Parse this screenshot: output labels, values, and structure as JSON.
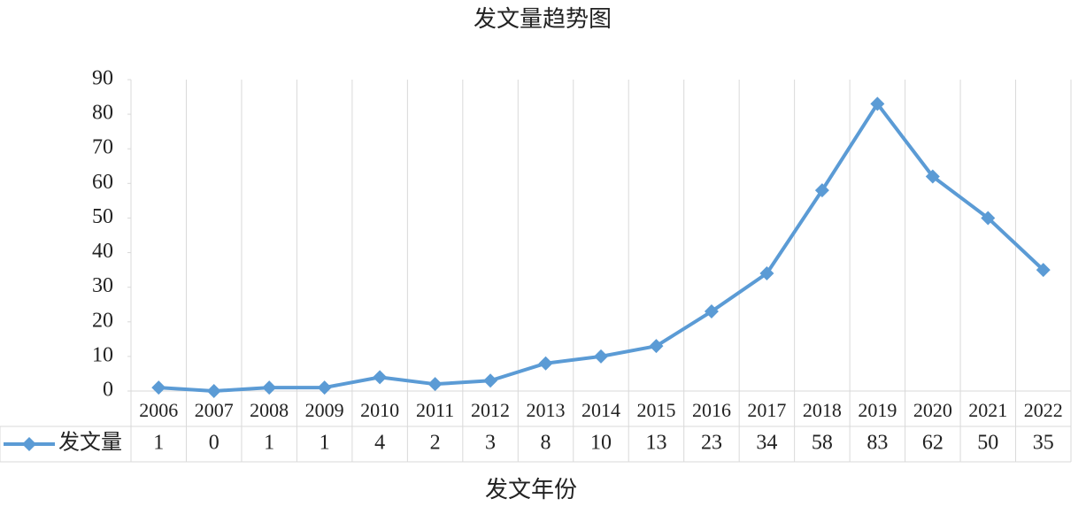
{
  "chart_data": {
    "type": "line",
    "title": "发文量趋势图",
    "x_label": "发文年份",
    "categories": [
      "2006",
      "2007",
      "2008",
      "2009",
      "2010",
      "2011",
      "2012",
      "2013",
      "2014",
      "2015",
      "2016",
      "2017",
      "2018",
      "2019",
      "2020",
      "2021",
      "2022"
    ],
    "series": [
      {
        "name": "发文量",
        "color": "#5b9bd5",
        "values": [
          1,
          0,
          1,
          1,
          4,
          2,
          3,
          8,
          10,
          13,
          23,
          34,
          58,
          83,
          62,
          50,
          35
        ]
      }
    ],
    "ylim": [
      0,
      90
    ],
    "yticks": [
      0,
      10,
      20,
      30,
      40,
      50,
      60,
      70,
      80,
      90
    ],
    "data_table": true
  }
}
